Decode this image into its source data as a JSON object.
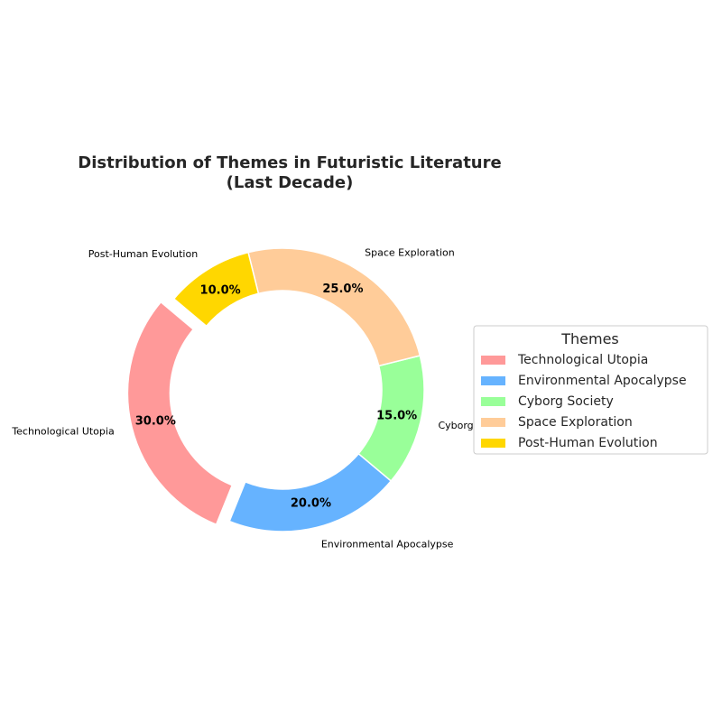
{
  "chart_data": {
    "type": "pie",
    "style": "donut",
    "title": "Distribution of Themes in Futuristic Literature",
    "subtitle": "(Last Decade)",
    "categories": [
      "Technological Utopia",
      "Environmental Apocalypse",
      "Cyborg Society",
      "Space Exploration",
      "Post-Human Evolution"
    ],
    "values": [
      30,
      20,
      15,
      25,
      10
    ],
    "percent_labels": [
      "30.0%",
      "20.0%",
      "15.0%",
      "25.0%",
      "10.0%"
    ],
    "colors": [
      "#FF9999",
      "#66B3FF",
      "#99FF99",
      "#FFCC99",
      "#FFD700"
    ],
    "exploded": [
      "Technological Utopia"
    ],
    "legend": {
      "title": "Themes",
      "placement": "center-right",
      "entries": [
        "Technological Utopia",
        "Environmental Apocalypse",
        "Cyborg Society",
        "Space Exploration",
        "Post-Human Evolution"
      ]
    }
  }
}
